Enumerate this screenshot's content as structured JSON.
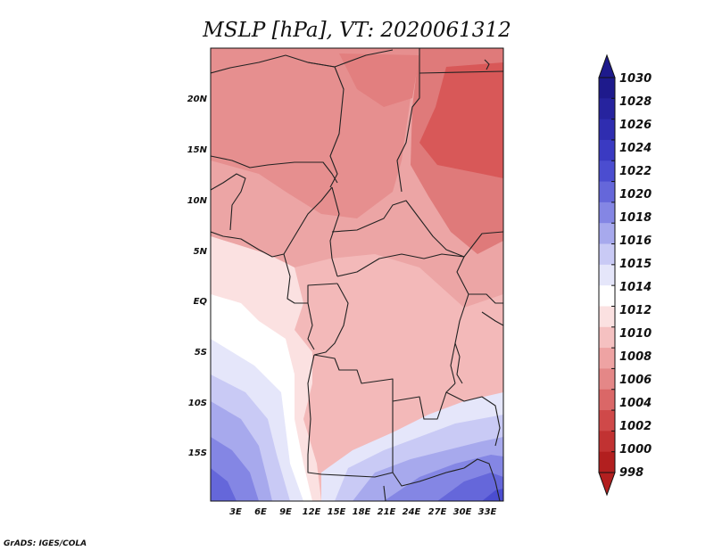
{
  "title": "MSLP [hPa], VT: 2020061312",
  "credit": "GrADS: IGES/COLA",
  "map": {
    "variable": "MSLP",
    "units": "hPa",
    "valid_time": "2020061312",
    "lat_labels": [
      "20N",
      "15N",
      "10N",
      "5N",
      "EQ",
      "5S",
      "10S",
      "15S"
    ],
    "lon_labels": [
      "3E",
      "6E",
      "9E",
      "12E",
      "15E",
      "18E",
      "21E",
      "24E",
      "27E",
      "30E",
      "33E"
    ]
  },
  "colorbar": {
    "labels": [
      "1030",
      "1028",
      "1026",
      "1024",
      "1022",
      "1020",
      "1018",
      "1016",
      "1015",
      "1014",
      "1012",
      "1010",
      "1008",
      "1006",
      "1004",
      "1002",
      "1000",
      "998"
    ],
    "colors": [
      "#1e1a8c",
      "#26239e",
      "#2f2db0",
      "#3a3ac2",
      "#4b4dd0",
      "#6567da",
      "#8486e4",
      "#a7a9ed",
      "#c9caf5",
      "#e5e6fa",
      "#ffffff",
      "#fbe1e1",
      "#f5c1c1",
      "#eea3a3",
      "#e48787",
      "#da6767",
      "#cf4949",
      "#c13232",
      "#b21f1f"
    ]
  }
}
